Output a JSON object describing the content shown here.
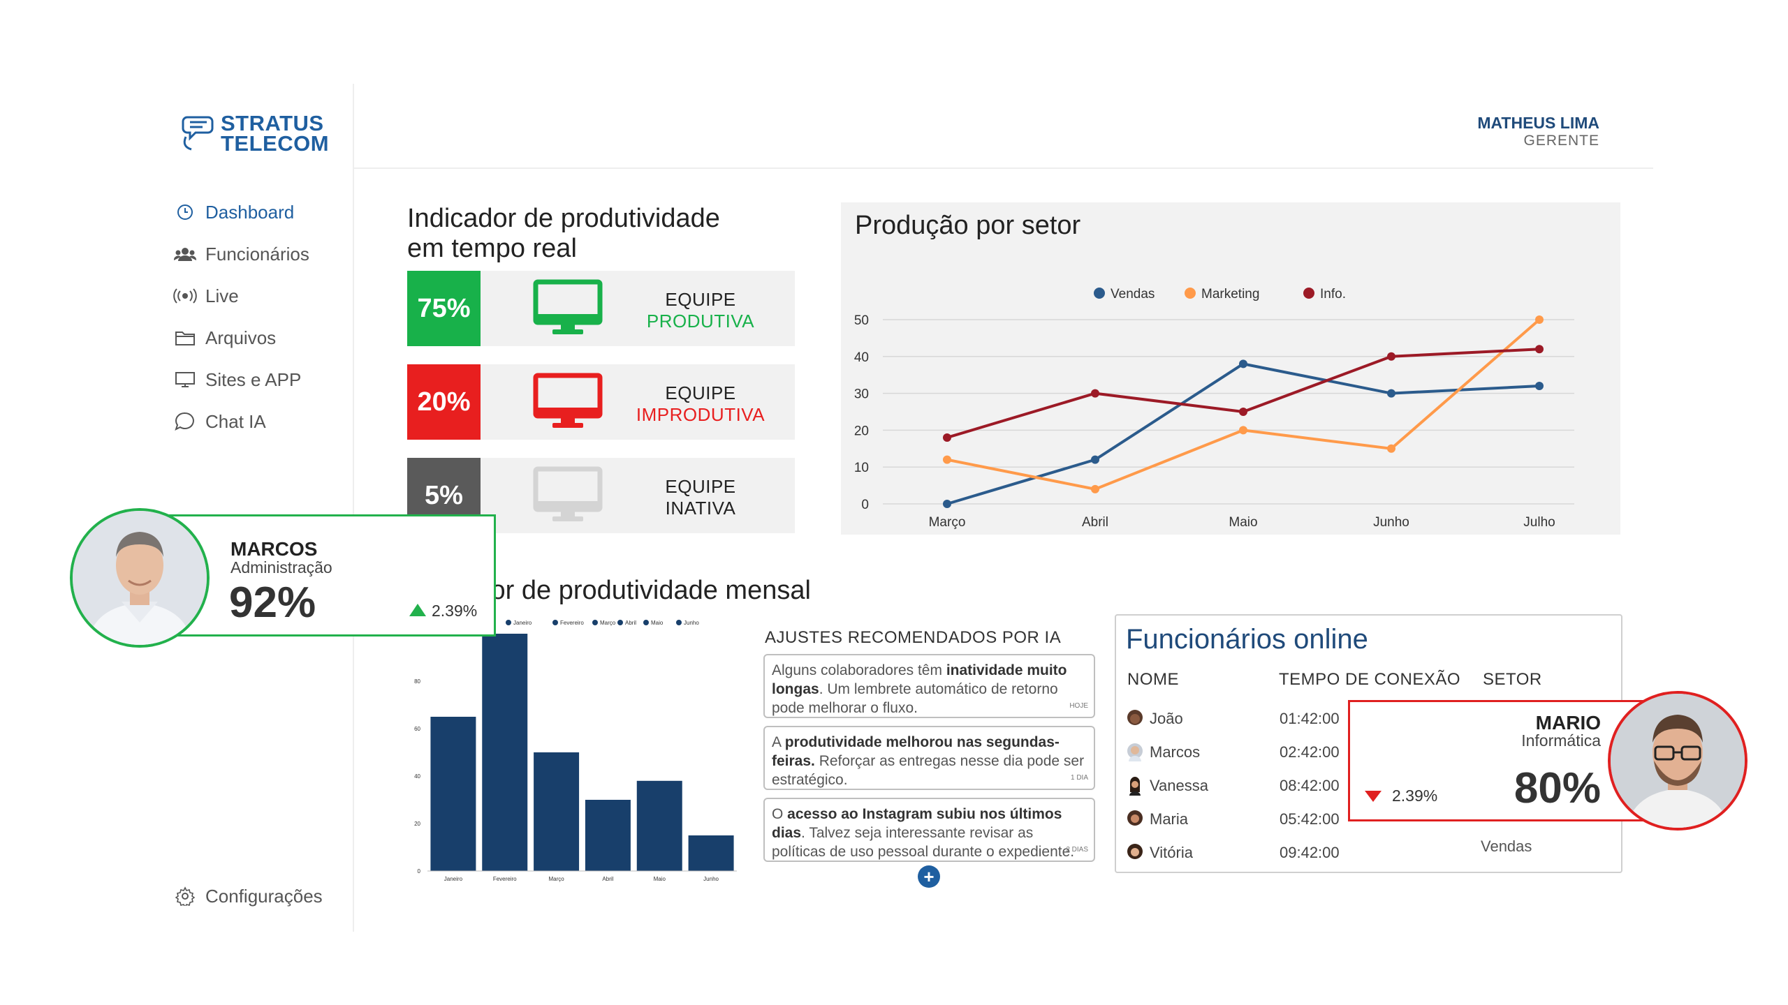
{
  "brand": {
    "line1": "STRATUS",
    "line2": "TELECOM",
    "color": "#1f5fa0"
  },
  "user": {
    "name": "MATHEUS LIMA",
    "role": "GERENTE"
  },
  "nav": {
    "items": [
      {
        "label": "Dashboard",
        "icon": "clock-icon",
        "active": true
      },
      {
        "label": "Funcionários",
        "icon": "users-icon"
      },
      {
        "label": "Live",
        "icon": "broadcast-icon"
      },
      {
        "label": "Arquivos",
        "icon": "folder-icon"
      },
      {
        "label": "Sites e APP",
        "icon": "monitor-icon"
      },
      {
        "label": "Chat IA",
        "icon": "chat-bubble-icon"
      }
    ],
    "settings": {
      "label": "Configurações",
      "icon": "gear-icon"
    }
  },
  "realtime": {
    "title_line1": "Indicador de produtividade",
    "title_line2": "em tempo real",
    "rows": [
      {
        "pct": "75%",
        "label1": "EQUIPE",
        "label2": "PRODUTIVA",
        "color": "#18b14a"
      },
      {
        "pct": "20%",
        "label1": "EQUIPE",
        "label2": "IMPRODUTIVA",
        "color": "#e81f1f"
      },
      {
        "pct": "5%",
        "label1": "EQUIPE",
        "label2": "INATIVA",
        "color": "#5a5a5a"
      }
    ]
  },
  "monthly_title": "Indicador de produtividade mensal",
  "chart_data": [
    {
      "type": "line",
      "title": "Produção por setor",
      "categories": [
        "Março",
        "Abril",
        "Maio",
        "Junho",
        "Julho"
      ],
      "series": [
        {
          "name": "Vendas",
          "values": [
            0,
            12,
            38,
            30,
            32
          ],
          "color": "#2b5b8c"
        },
        {
          "name": "Marketing",
          "values": [
            12,
            4,
            20,
            15,
            50
          ],
          "color": "#ff9a4a"
        },
        {
          "name": "Info.",
          "values": [
            18,
            30,
            25,
            40,
            42
          ],
          "color": "#9c1a26"
        }
      ],
      "ylim": [
        0,
        50
      ],
      "yticks": [
        "0",
        "10",
        "20",
        "30",
        "40",
        "50"
      ],
      "legend": "top",
      "grid": true
    },
    {
      "type": "bar",
      "categories": [
        "Janeiro",
        "Fevereiro",
        "Março",
        "Abril",
        "Maio",
        "Junho"
      ],
      "values": [
        65,
        100,
        50,
        30,
        38,
        15
      ],
      "color": "#183f6b",
      "ylim": [
        0,
        100
      ],
      "yticks": [
        "0",
        "20",
        "40",
        "60",
        "80"
      ],
      "legend": "top"
    }
  ],
  "recommendations": {
    "title": "AJUSTES RECOMENDADOS POR IA",
    "items": [
      {
        "pre": "Alguns colaboradores têm ",
        "bold": "inatividade muito longas",
        "post": ". Um lembrete automático de retorno pode melhorar o fluxo.",
        "time": "HOJE"
      },
      {
        "pre": "A ",
        "bold": "produtividade melhorou nas segundas-feiras.",
        "post": " Reforçar as entregas nesse dia pode ser estratégico.",
        "time": "1 DIA"
      },
      {
        "pre": "O ",
        "bold": "acesso ao Instagram subiu nos últimos dias",
        "post": ". Talvez seja interessante revisar as políticas de uso pessoal durante o expediente.",
        "time": "2 DIAS"
      }
    ]
  },
  "online": {
    "title": "Funcionários online",
    "headers": {
      "name": "NOME",
      "time": "TEMPO DE CONEXÃO",
      "sector": "SETOR"
    },
    "rows": [
      {
        "name": "João",
        "time": "01:42:00"
      },
      {
        "name": "Marcos",
        "time": "02:42:00"
      },
      {
        "name": "Vanessa",
        "time": "08:42:00"
      },
      {
        "name": "Maria",
        "time": "05:42:00"
      },
      {
        "name": "Vitória",
        "time": "09:42:00"
      }
    ],
    "visible_sector": "Vendas"
  },
  "marcos_card": {
    "name": "MARCOS",
    "dept": "Administração",
    "pct": "92%",
    "delta": "2.39%",
    "trend": "up",
    "color": "#22b14c"
  },
  "mario_card": {
    "name": "MARIO",
    "dept": "Informática",
    "pct": "80%",
    "delta": "2.39%",
    "trend": "down",
    "color": "#e02020"
  }
}
